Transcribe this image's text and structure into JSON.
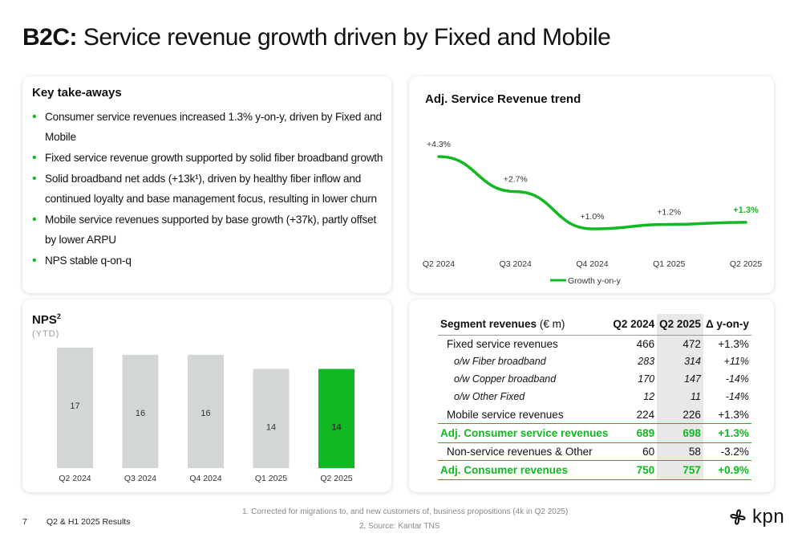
{
  "title": {
    "bold": "B2C:",
    "rest": " Service revenue growth driven by Fixed and Mobile"
  },
  "takeaways": {
    "title": "Key take-aways",
    "items": [
      "Consumer service revenues increased 1.3% y-on-y, driven by Fixed and Mobile",
      "Fixed service revenue growth supported by solid fiber broadband growth",
      "Solid broadband net adds (+13k¹), driven by healthy fiber inflow and continued loyalty and base management focus, resulting in lower churn",
      "Mobile service revenues supported by base growth (+37k), partly offset by lower ARPU",
      "NPS stable q-on-q"
    ]
  },
  "trend": {
    "title": "Adj. Service Revenue trend",
    "chart_data": {
      "type": "line",
      "categories": [
        "Q2 2024",
        "Q3 2024",
        "Q4 2024",
        "Q1 2025",
        "Q2 2025"
      ],
      "series": [
        {
          "name": "Growth y-on-y",
          "values": [
            4.3,
            2.7,
            1.0,
            1.2,
            1.3
          ]
        }
      ],
      "labels": [
        "+4.3%",
        "+2.7%",
        "+1.0%",
        "+1.2%",
        "+1.3%"
      ],
      "color": "#10b821"
    }
  },
  "nps": {
    "title": "NPS",
    "superscript": "2",
    "subtitle": "(YTD)",
    "chart_data": {
      "type": "bar",
      "categories": [
        "Q2 2024",
        "Q3 2024",
        "Q4 2024",
        "Q1 2025",
        "Q2 2025"
      ],
      "values": [
        17,
        16,
        16,
        14,
        14
      ],
      "bar_color": "#d3d7d3",
      "highlight_color": "#10b821"
    }
  },
  "segment": {
    "header": {
      "label": "Segment revenues",
      "unit": "(€ m)",
      "col1": "Q2 2024",
      "col2": "Q2 2025",
      "col3": "Δ y-on-y"
    },
    "rows": [
      {
        "type": "main",
        "label": "Fixed service revenues",
        "v1": "466",
        "v2": "472",
        "d": "+1.3%"
      },
      {
        "type": "sub",
        "label": "o/w Fiber broadband",
        "v1": "283",
        "v2": "314",
        "d": "+11%"
      },
      {
        "type": "sub",
        "label": "o/w Copper broadband",
        "v1": "170",
        "v2": "147",
        "d": "-14%"
      },
      {
        "type": "sub",
        "label": "o/w Other Fixed",
        "v1": "12",
        "v2": "11",
        "d": "-14%"
      },
      {
        "type": "main",
        "label": "Mobile service revenues",
        "v1": "224",
        "v2": "226",
        "d": "+1.3%"
      },
      {
        "type": "total",
        "label": "Adj. Consumer service revenues",
        "v1": "689",
        "v2": "698",
        "d": "+1.3%"
      },
      {
        "type": "main",
        "label": "Non-service revenues & Other",
        "v1": "60",
        "v2": "58",
        "d": "-3.2%"
      },
      {
        "type": "total",
        "label": "Adj. Consumer revenues",
        "v1": "750",
        "v2": "757",
        "d": "+0.9%"
      }
    ]
  },
  "footer": {
    "page": "7",
    "title": "Q2 & H1 2025 Results",
    "footnote1": "1.    Corrected for migrations to, and new customers of, business propositions (4k in Q2 2025)",
    "footnote2": "2.    Source: Kantar TNS"
  },
  "logo": {
    "text": "kpn",
    "icon": "kpn-flower-icon"
  }
}
